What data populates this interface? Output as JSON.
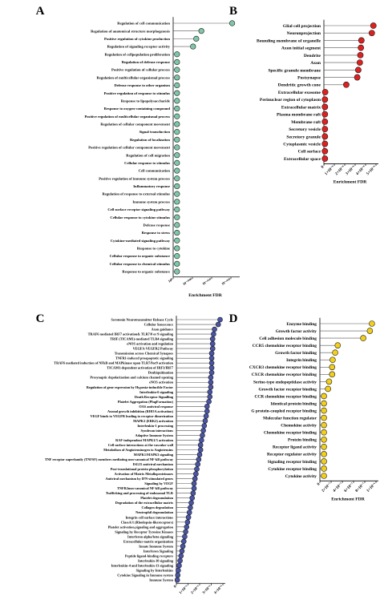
{
  "chart_data": [
    {
      "panel": "A",
      "type": "scatter",
      "xlabel": "Enrichment FDR",
      "xlim": [
        0,
        1
      ],
      "xticks": [
        "10⁰",
        "10⁻¹⁰⁰⁰",
        "10⁻¹⁰²⁰",
        "10⁻¹⁰³⁰"
      ],
      "color": "#7ec8a8",
      "categories": [
        "Regulation of cell communication",
        "Regulation of anatomical structure morphogenesis",
        "Positive regulation of cytokine production",
        "Regulation of signaling receptor activity",
        "Regulation of cellpopulation proliferation",
        "Regulation of defense response",
        "Positive regulation of cellular process",
        "Regulation of multicellular organismal process",
        "Defense response to other organism",
        "Positive regulation of response to stimulus",
        "Response to lipopolysaccharide",
        "Response to oxygen-containing compound",
        "Positive regulation of multicellular organismal process",
        "Regulation of cellular component movement",
        "Signal transduction",
        "Regulation of localization",
        "Positive regulation of cellular component movement",
        "Regulation of cell migration",
        "Cellular response to stimulus",
        "Cell communication",
        "Positive regulation of immune system process",
        "Inflammatory response",
        "Regulation of response to external stimulus",
        "Immune system process",
        "Cell surface receptor signaling pathway",
        "Cellular response to cytokine stimulus",
        "Defense response",
        "Response to stress",
        "Cytokine-mediated signaling pathway",
        "Response to cytokine",
        "Cellular response to organic substance",
        "Cellular response to chemical stimulus",
        "Response to organic substance"
      ],
      "values": [
        0.92,
        0.44,
        0.36,
        0.31,
        0.06,
        0.06,
        0.06,
        0.06,
        0.06,
        0.06,
        0.06,
        0.06,
        0.06,
        0.06,
        0.06,
        0.06,
        0.06,
        0.06,
        0.06,
        0.06,
        0.06,
        0.06,
        0.06,
        0.06,
        0.06,
        0.06,
        0.06,
        0.06,
        0.06,
        0.06,
        0.06,
        0.06,
        0.06
      ]
    },
    {
      "panel": "B",
      "type": "scatter",
      "xlabel": "Enrichment FDR",
      "xlim": [
        0,
        1e-05
      ],
      "xticks": [
        "0",
        "1×10⁻⁶",
        "2×10⁻⁶",
        "3×10⁻⁶",
        "4×10⁻⁶",
        "5×10⁻⁶"
      ],
      "color": "#dd2020",
      "categories": [
        "Glial cell projection",
        "Neuronprojection",
        "Bounding membrane of organelle",
        "Axon initial segment",
        "Dendrite",
        "Axon",
        "Specific granule membrane",
        "Postsynapse",
        "Dendritic growth cone",
        "Extracellular exosome",
        "Perinuclear region of cytoplasm",
        "Extracellular matrix",
        "Plasma membrane raft",
        "Membrane raft",
        "Secretory vesicle",
        "Secretory granule",
        "Cytoplasmic vesicle",
        "Cell surface",
        "Extracellular space"
      ],
      "values": [
        9.5e-06,
        9.2e-06,
        7.2e-06,
        7.1e-06,
        7e-06,
        6.9e-06,
        6.6e-06,
        6.4e-06,
        4.3e-06,
        2.5e-07,
        2e-07,
        2e-07,
        2e-07,
        2e-07,
        2e-07,
        2e-07,
        2e-07,
        2e-07,
        2e-07
      ]
    },
    {
      "panel": "C",
      "type": "scatter",
      "xlabel": "Enrichment FDR",
      "xlim": [
        0,
        5e-06
      ],
      "xticks": [
        "0",
        "1×10⁻⁶",
        "2×10⁻⁶",
        "3×10⁻⁶",
        "4×10⁻⁶"
      ],
      "color": "#4a55a8",
      "categories": [
        "Serotonin Neurotransmitter Release Cycle",
        "Cellular Senescence",
        "Axon guidance",
        "TRAF6 mediated IRF7 activation& TLR7/8 or 9 signaling",
        "TRIF (TICAM1)-mediated TLR4 signaling",
        "eNOS activation and regulation",
        "VEGFA-VEGFR2 Pathway",
        "Transmission across Chemical Synapses",
        "TNFR1-induced proapoptotic signaling",
        "TRAF6 mediated induction of NFkB and MAPkinase upon TLR7/8or9 activation",
        "TICAM1-dependent activation of IRF3/IRF7",
        "Deubiquitination",
        "Presynaptic depolarization and calcium channel opening",
        "eNOS activation",
        "Regulation of gene expression by Hypoxia-inducible Factor",
        "Interleukin-6 signaling",
        "Death Receptor Signalling",
        "Platelet Aggregation (PlugFormation)",
        "OAS antiviral response",
        "Axonal growth inhibition (RHOA activation)",
        "VEGF binds to VEGFR leading to receptor dimerization",
        "MAPK1 (ERK2) activation",
        "Interleukin-1 processing",
        "Syndecan interactions",
        "Adaptive Immune System",
        "RAF-independent MAPK1/3 activation",
        "Cell surface interactions at the vascular wall",
        "Metabolism of Angiotensinogen to Angiotensins",
        "MAPK1/MAPK3 signaling",
        "TNF receptor superfamily (TNFSF) members mediating non-canonical NF-kB pathway",
        "ISG15 antiviral mechanism",
        "Post-translational protein phosphorylation",
        "Activation of Matrix Metalloproteinases",
        "Antiviral mechanism by IFN-stimulated genes",
        "Signaling by VEGF",
        "TNFR2non-canonical NF-kB pathway",
        "Trafficking and processing of endosomal TLR",
        "Platelet degranulation",
        "Degradation of the extracellular matrix",
        "Collagen degradation",
        "Neutrophil degranulation",
        "Integrin cell surface interactions",
        "ClassA/1 (Rhodopsin-likereceptors)",
        "Platelet activation,signaling and aggregation",
        "Signaling by Receptor Tyrosine Kinases",
        "Interferon alpha/beta signaling",
        "Extracellular matrix organization",
        "Innate Immune System",
        "Interferon Signaling",
        "Peptide ligand-binding receptors",
        "Interleukin-10 signaling",
        "Interleukin-4 and Interleukin-13 signaling",
        "Signaling by Interleukins",
        "Cytokine Signaling in Immune system",
        "Immune System"
      ],
      "values": [
        4.7e-06,
        4.5e-06,
        4.1e-06,
        4e-06,
        3.9e-06,
        3.9e-06,
        3.9e-06,
        3.8e-06,
        3.8e-06,
        3.8e-06,
        3.8e-06,
        3.8e-06,
        3.7e-06,
        3.7e-06,
        3.7e-06,
        3.6e-06,
        3.6e-06,
        3.5e-06,
        3.3e-06,
        3.3e-06,
        3.2e-06,
        3.1e-06,
        3e-06,
        2.9e-06,
        2.8e-06,
        2.7e-06,
        2.6e-06,
        2.6e-06,
        2.5e-06,
        2.4e-06,
        2.3e-06,
        2.2e-06,
        2.1e-06,
        2e-06,
        1.9e-06,
        1.9e-06,
        1.8e-06,
        1.7e-06,
        1.6e-06,
        1.5e-06,
        1.4e-06,
        1.3e-06,
        1.2e-06,
        1.1e-06,
        1e-06,
        9e-07,
        8e-07,
        7e-07,
        6e-07,
        5e-07,
        4e-07,
        3e-07,
        2e-07,
        1.5e-07,
        1e-07
      ]
    },
    {
      "panel": "D",
      "type": "scatter",
      "xlabel": "Enrichment FDR",
      "xlim": [
        0,
        1.1e-06
      ],
      "xticks": [
        "0",
        "2×10⁻⁷",
        "4×10⁻⁷",
        "6×10⁻⁷",
        "8×10⁻⁷",
        "1×10⁻⁶"
      ],
      "color": "#f1cf1c",
      "categories": [
        "Enzyme binding",
        "Growth factor activity",
        "Cell adhesion molecule binding",
        "CCR5 chemokine receptor binding",
        "Growth factor binding",
        "Integrin binding",
        "CXCR3 chemokine receptor binding",
        "CXCR chemokine receptor binding",
        "Serine-type endopeptidase activity",
        "Growth factor receptor binding",
        "CCR chemokine receptor binding",
        "Identical protein binding",
        "G protein-coupled receptor binding",
        "Molecular function regulator",
        "Chemokine activity",
        "Chemokine receptor binding",
        "Protein binding",
        "Receptor ligand activity",
        "Receptor regulator activity",
        "Signaling receptor binding",
        "Cytokine receptor binding",
        "Cytokine activity"
      ],
      "values": [
        1.02e-06,
        9.8e-07,
        8.5e-07,
        3.5e-07,
        3e-07,
        2.5e-07,
        2.4e-07,
        2.4e-07,
        1.8e-07,
        1.6e-07,
        8e-08,
        8e-08,
        8e-08,
        8e-08,
        8e-08,
        8e-08,
        8e-08,
        8e-08,
        8e-08,
        8e-08,
        8e-08,
        8e-08
      ]
    }
  ]
}
